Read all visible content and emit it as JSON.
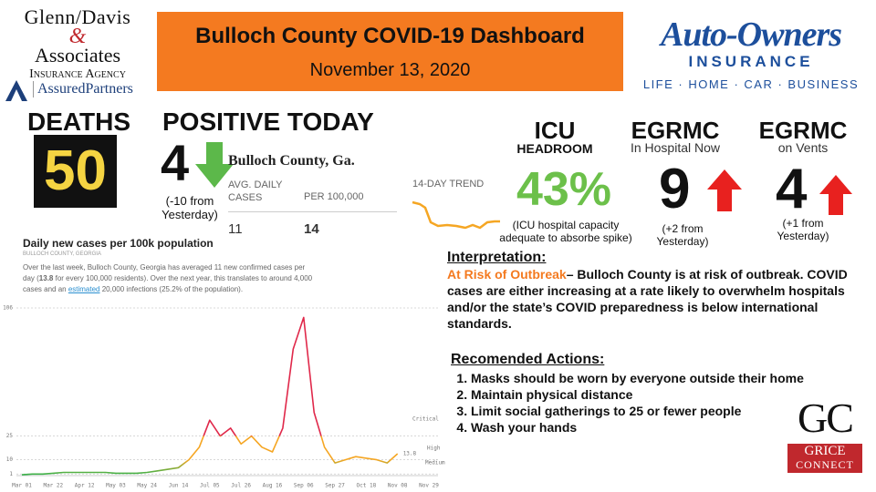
{
  "header": {
    "left_logo": [
      "Glenn/Davis",
      "&",
      "Associates",
      "Insurance Agency",
      "AssuredPartners"
    ],
    "title": "Bulloch County COVID-19 Dashboard",
    "date": "November 13, 2020",
    "right_logo": {
      "name": "Auto-Owners",
      "sub": "INSURANCE",
      "tagline": "LIFE · HOME · CAR · BUSINESS"
    }
  },
  "deaths": {
    "label": "DEATHS",
    "value": 50
  },
  "positive_today": {
    "label": "POSITIVE TODAY",
    "value": 4,
    "note": "(-10 from Yesterday)"
  },
  "county_widget": {
    "name": "Bulloch County, Ga.",
    "col1": "AVG. DAILY CASES",
    "col2": "PER 100,000",
    "avg_daily": 11,
    "per_100k": 14,
    "trend_label": "14-DAY TREND"
  },
  "icu": {
    "label": "ICU",
    "sub": "HEADROOM",
    "value": "43%",
    "note": "(ICU hospital capacity adequate to absorbe spike)"
  },
  "egrmc_hospital": {
    "label": "EGRMC",
    "sub": "In Hospital Now",
    "value": 9,
    "note": "(+2 from Yesterday)"
  },
  "egrmc_vents": {
    "label": "EGRMC",
    "sub": "on Vents",
    "value": 4,
    "note": "(+1 from Yesterday)"
  },
  "cases_section": {
    "title": "Daily new cases per 100k population",
    "subtitle": "BULLOCH COUNTY, GEORGIA",
    "description": [
      "Over the last week, Bulloch County, Georgia has averaged 11 new confirmed cases per day (",
      "13.8",
      " for every 100,000 residents). Over the next year, this translates to around 4,000 cases and an ",
      "estimated",
      " 20,000 infections (25.2% of the population)."
    ]
  },
  "chart_data": {
    "type": "line",
    "categories": [
      "Mar 01",
      null,
      null,
      "Mar 22",
      null,
      null,
      "Apr 12",
      null,
      null,
      "May 03",
      null,
      null,
      "May 24",
      null,
      null,
      "Jun 14",
      null,
      null,
      "Jul 05",
      null,
      null,
      "Jul 26",
      null,
      null,
      "Aug 16",
      null,
      null,
      "Sep 06",
      null,
      null,
      "Sep 27",
      null,
      null,
      "Oct 18",
      null,
      null,
      "Nov 08",
      null,
      null,
      "Nov 29"
    ],
    "values": [
      0.5,
      1,
      1,
      1.5,
      2,
      2,
      2,
      2,
      2,
      1.5,
      1.5,
      1.5,
      2,
      3,
      4,
      5,
      10,
      18,
      35,
      25,
      30,
      20,
      25,
      18,
      15,
      30,
      80,
      100,
      40,
      18,
      8,
      10,
      12,
      11,
      10,
      8,
      13.8,
      null,
      null,
      null
    ],
    "colors": {
      "critical": "#e0284a",
      "high": "#f5a623",
      "low": "#2bb24c"
    },
    "ylim": [
      0,
      106
    ],
    "yticks": [
      1,
      10,
      25,
      106
    ],
    "grid": true,
    "annotations": [
      "Critical",
      "High",
      "Medium",
      "13.8"
    ]
  },
  "interpretation": {
    "heading": "Interpretation:",
    "risk": "At Risk of Outbreak",
    "text": "– Bulloch County is at risk of outbreak. COVID cases are either increasing at a rate likely to overwhelm hospitals and/or the state’s COVID preparedness is below international standards."
  },
  "actions": {
    "heading": "Recomended Actions:",
    "items": [
      "Masks should be worn by everyone outside their home",
      "Maintain physical distance",
      "Limit social gatherings to 25 or fewer people",
      "Wash your hands"
    ]
  },
  "footer_logo": {
    "mark": "GC",
    "line1": "GRICE",
    "line2": "CONNECT"
  }
}
